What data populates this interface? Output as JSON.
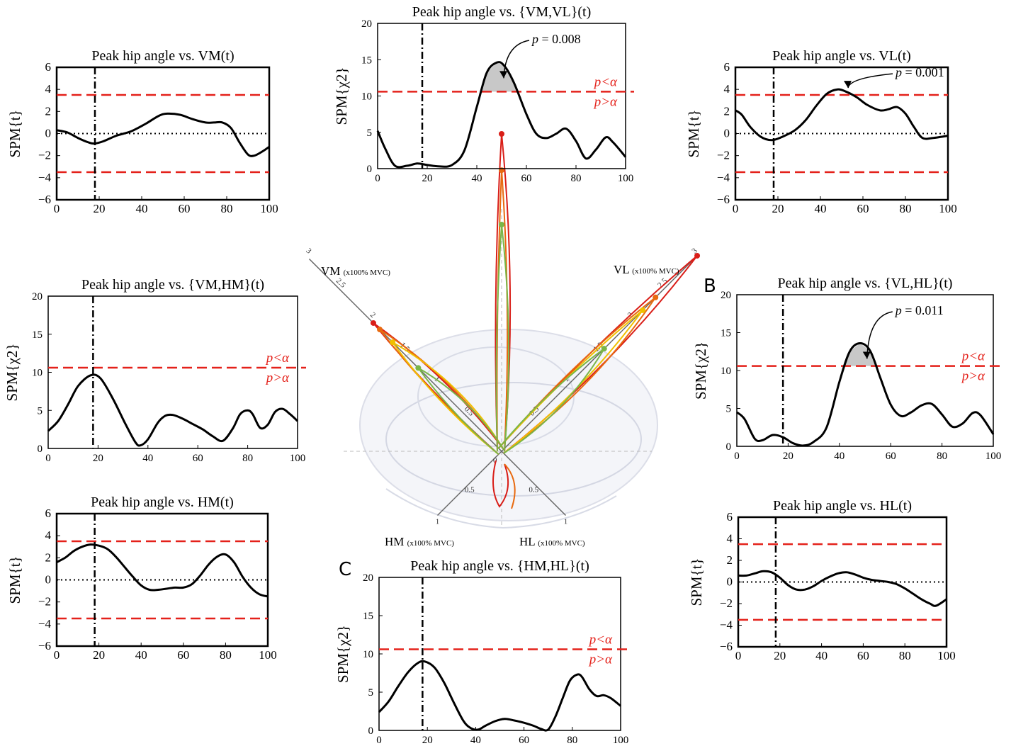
{
  "chart_data": [
    {
      "id": "vm",
      "type": "line",
      "stat": "t",
      "title": "Peak hip angle vs. VM(t)",
      "ylabel": "SPM{t}",
      "xlim": [
        0,
        100
      ],
      "ylim": [
        -6,
        6
      ],
      "xticks": [
        "0",
        "20",
        "40",
        "60",
        "80",
        "100"
      ],
      "yticks": [
        "−6",
        "−4",
        "−2",
        "0",
        "2",
        "4",
        "6"
      ],
      "threshold": 3.5,
      "vline_x": 18,
      "zero_line": true,
      "x": [
        0,
        5,
        10,
        15,
        18,
        22,
        28,
        35,
        42,
        48,
        52,
        58,
        64,
        70,
        74,
        78,
        82,
        86,
        90,
        93,
        97,
        100
      ],
      "y": [
        0.3,
        0.1,
        -0.4,
        -0.8,
        -0.9,
        -0.7,
        -0.2,
        0.2,
        0.9,
        1.6,
        1.8,
        1.7,
        1.3,
        1.0,
        1.0,
        1.0,
        0.5,
        -0.8,
        -1.9,
        -2.0,
        -1.6,
        -1.2
      ]
    },
    {
      "id": "vmvl",
      "type": "line",
      "stat": "chi2",
      "title": "Peak hip angle vs. {VM,VL}(t)",
      "ylabel": "SPM{χ2}",
      "xlim": [
        0,
        100
      ],
      "ylim": [
        0,
        20
      ],
      "xticks": [
        "0",
        "20",
        "40",
        "60",
        "80",
        "100"
      ],
      "yticks": [
        "0",
        "5",
        "10",
        "15",
        "20"
      ],
      "threshold": 10.6,
      "vline_x": 18,
      "p_label": "= 0.008",
      "alpha_above": "p<α",
      "alpha_below": "p>α",
      "x": [
        0,
        3,
        7,
        12,
        16,
        20,
        25,
        30,
        35,
        40,
        44,
        48,
        51,
        55,
        60,
        64,
        68,
        72,
        76,
        80,
        84,
        88,
        92,
        95,
        100
      ],
      "y": [
        5.2,
        2.8,
        0.4,
        0.4,
        0.7,
        0.5,
        0.3,
        0.5,
        2.5,
        8.5,
        13.2,
        14.6,
        14.2,
        11.8,
        7.5,
        4.8,
        4.2,
        4.8,
        5.5,
        3.8,
        1.4,
        2.6,
        4.3,
        3.6,
        1.6
      ]
    },
    {
      "id": "vl",
      "type": "line",
      "stat": "t",
      "title": "Peak hip angle vs. VL(t)",
      "ylabel": "SPM{t}",
      "xlim": [
        0,
        100
      ],
      "ylim": [
        -6,
        6
      ],
      "xticks": [
        "0",
        "20",
        "40",
        "60",
        "80",
        "100"
      ],
      "yticks": [
        "−6",
        "−4",
        "−2",
        "0",
        "2",
        "4",
        "6"
      ],
      "threshold": 3.5,
      "vline_x": 18,
      "zero_line": true,
      "p_label": "= 0.001",
      "x": [
        0,
        3,
        7,
        12,
        17,
        22,
        28,
        33,
        38,
        43,
        48,
        52,
        57,
        62,
        68,
        72,
        76,
        80,
        84,
        88,
        93,
        100
      ],
      "y": [
        2.1,
        1.7,
        0.6,
        -0.3,
        -0.6,
        -0.3,
        0.3,
        1.2,
        2.5,
        3.6,
        4.0,
        3.8,
        3.3,
        2.6,
        2.1,
        2.2,
        2.4,
        1.8,
        0.6,
        -0.4,
        -0.4,
        -0.2
      ]
    },
    {
      "id": "vmhm",
      "type": "line",
      "stat": "chi2",
      "title": "Peak hip angle vs. {VM,HM}(t)",
      "ylabel": "SPM{χ2}",
      "xlim": [
        0,
        100
      ],
      "ylim": [
        0,
        20
      ],
      "xticks": [
        "0",
        "20",
        "40",
        "60",
        "80",
        "100"
      ],
      "yticks": [
        "0",
        "5",
        "10",
        "15",
        "20"
      ],
      "threshold": 10.6,
      "vline_x": 18,
      "alpha_above": "p<α",
      "alpha_below": "p>α",
      "x": [
        0,
        4,
        8,
        12,
        17,
        21,
        26,
        31,
        35,
        37,
        40,
        44,
        47,
        50,
        54,
        58,
        62,
        66,
        70,
        74,
        77,
        80,
        82,
        85,
        88,
        91,
        94,
        97,
        100
      ],
      "y": [
        2.3,
        3.6,
        5.8,
        8.2,
        9.6,
        9.2,
        6.5,
        3.2,
        0.8,
        0.4,
        1.2,
        3.4,
        4.3,
        4.4,
        3.9,
        3.2,
        2.5,
        1.6,
        1.0,
        2.6,
        4.5,
        5.0,
        4.5,
        2.7,
        3.1,
        4.8,
        5.2,
        4.5,
        3.6
      ]
    },
    {
      "id": "vlhl",
      "type": "line",
      "stat": "chi2",
      "title": "Peak hip angle vs. {VL,HL}(t)",
      "ylabel": "SPM{χ2}",
      "xlim": [
        0,
        100
      ],
      "ylim": [
        0,
        20
      ],
      "xticks": [
        "0",
        "20",
        "40",
        "60",
        "80",
        "100"
      ],
      "yticks": [
        "0",
        "5",
        "10",
        "15",
        "20"
      ],
      "threshold": 10.6,
      "vline_x": 18,
      "p_label": "= 0.011",
      "alpha_above": "p<α",
      "alpha_below": "p>α",
      "x": [
        0,
        3,
        7,
        10,
        14,
        18,
        22,
        26,
        30,
        35,
        40,
        44,
        48,
        52,
        56,
        60,
        64,
        68,
        72,
        76,
        80,
        84,
        88,
        92,
        95,
        100
      ],
      "y": [
        4.5,
        3.6,
        1.0,
        0.8,
        1.5,
        1.2,
        0.4,
        0.1,
        0.6,
        2.5,
        8.5,
        12.5,
        13.6,
        12.6,
        9.0,
        5.5,
        4.0,
        4.5,
        5.4,
        5.6,
        4.2,
        2.6,
        3.0,
        4.4,
        4.1,
        1.6
      ]
    },
    {
      "id": "hm",
      "type": "line",
      "stat": "t",
      "title": "Peak hip angle vs. HM(t)",
      "ylabel": "SPM{t}",
      "xlim": [
        0,
        100
      ],
      "ylim": [
        -6,
        6
      ],
      "xticks": [
        "0",
        "20",
        "40",
        "60",
        "80",
        "100"
      ],
      "yticks": [
        "−6",
        "−4",
        "−2",
        "0",
        "2",
        "4",
        "6"
      ],
      "threshold": 3.5,
      "vline_x": 18,
      "zero_line": true,
      "x": [
        0,
        4,
        8,
        12,
        16,
        20,
        24,
        28,
        32,
        36,
        40,
        44,
        48,
        52,
        56,
        60,
        64,
        68,
        72,
        76,
        80,
        84,
        88,
        92,
        96,
        100
      ],
      "y": [
        1.6,
        2.0,
        2.6,
        3.0,
        3.2,
        3.1,
        2.8,
        2.1,
        1.2,
        0.3,
        -0.5,
        -0.9,
        -0.9,
        -0.8,
        -0.7,
        -0.7,
        -0.4,
        0.4,
        1.4,
        2.1,
        2.3,
        1.6,
        0.3,
        -0.7,
        -1.3,
        -1.5
      ]
    },
    {
      "id": "hmhl",
      "type": "line",
      "stat": "chi2",
      "title": "Peak hip angle vs. {HM,HL}(t)",
      "ylabel": "SPM{χ2}",
      "xlim": [
        0,
        100
      ],
      "ylim": [
        0,
        20
      ],
      "xticks": [
        "0",
        "20",
        "40",
        "60",
        "80",
        "100"
      ],
      "yticks": [
        "0",
        "5",
        "10",
        "15",
        "20"
      ],
      "threshold": 10.6,
      "vline_x": 18,
      "alpha_above": "p<α",
      "alpha_below": "p>α",
      "x": [
        0,
        4,
        8,
        12,
        16,
        19,
        23,
        27,
        31,
        35,
        38,
        41,
        44,
        48,
        52,
        56,
        60,
        64,
        67,
        70,
        73,
        76,
        79,
        82,
        84,
        87,
        90,
        93,
        96,
        100
      ],
      "y": [
        2.4,
        3.8,
        5.8,
        7.6,
        8.8,
        9.0,
        8.2,
        6.2,
        3.6,
        1.2,
        0.3,
        0.1,
        0.6,
        1.2,
        1.5,
        1.3,
        1.0,
        0.6,
        0.2,
        0.1,
        1.8,
        4.2,
        6.5,
        7.3,
        7.0,
        5.4,
        4.5,
        4.6,
        4.2,
        3.2
      ]
    },
    {
      "id": "hl",
      "type": "line",
      "stat": "t",
      "title": "Peak hip angle vs. HL(t)",
      "ylabel": "SPM{t}",
      "xlim": [
        0,
        100
      ],
      "ylim": [
        -6,
        6
      ],
      "xticks": [
        "0",
        "20",
        "40",
        "60",
        "80",
        "100"
      ],
      "yticks": [
        "−6",
        "−4",
        "−2",
        "0",
        "2",
        "4",
        "6"
      ],
      "threshold": 3.5,
      "vline_x": 18,
      "zero_line": true,
      "x": [
        0,
        4,
        8,
        12,
        16,
        20,
        24,
        28,
        32,
        36,
        40,
        44,
        48,
        52,
        56,
        60,
        64,
        68,
        72,
        76,
        80,
        84,
        88,
        92,
        95,
        100
      ],
      "y": [
        0.6,
        0.6,
        0.8,
        1.0,
        0.9,
        0.4,
        -0.3,
        -0.7,
        -0.7,
        -0.4,
        0.1,
        0.5,
        0.8,
        0.9,
        0.7,
        0.4,
        0.2,
        0.1,
        0.0,
        -0.2,
        -0.6,
        -1.1,
        -1.6,
        -2.0,
        -2.2,
        -1.6
      ]
    }
  ],
  "panel_letters": {
    "b": "B",
    "c": "C"
  },
  "radial": {
    "vm_label": "VM",
    "vl_label": "VL",
    "hm_label": "HM",
    "hl_label": "HL",
    "unit": "(x100% MVC)",
    "ticks": [
      "0",
      "0.5",
      "1",
      "1.5",
      "2",
      "2.5",
      "3"
    ],
    "traces": [
      {
        "color": "#d91e18",
        "dir": "vm",
        "r_max": 2.0
      },
      {
        "color": "#e86a10",
        "dir": "vm",
        "r_max": 1.9
      },
      {
        "color": "#f0c000",
        "dir": "vm",
        "r_max": 1.7
      },
      {
        "color": "#7ab648",
        "dir": "vm",
        "r_max": 1.3
      },
      {
        "color": "#d91e18",
        "dir": "vl",
        "r_max": 3.05
      },
      {
        "color": "#e86a10",
        "dir": "vl",
        "r_max": 2.4
      },
      {
        "color": "#f0c000",
        "dir": "vl",
        "r_max": 2.2
      },
      {
        "color": "#7ab648",
        "dir": "vl",
        "r_max": 1.6
      },
      {
        "color": "#d91e18",
        "dir": "up",
        "r_max": 3.5
      },
      {
        "color": "#e86a10",
        "dir": "up",
        "r_max": 3.1
      },
      {
        "color": "#7ab648",
        "dir": "up",
        "r_max": 2.5
      }
    ]
  }
}
